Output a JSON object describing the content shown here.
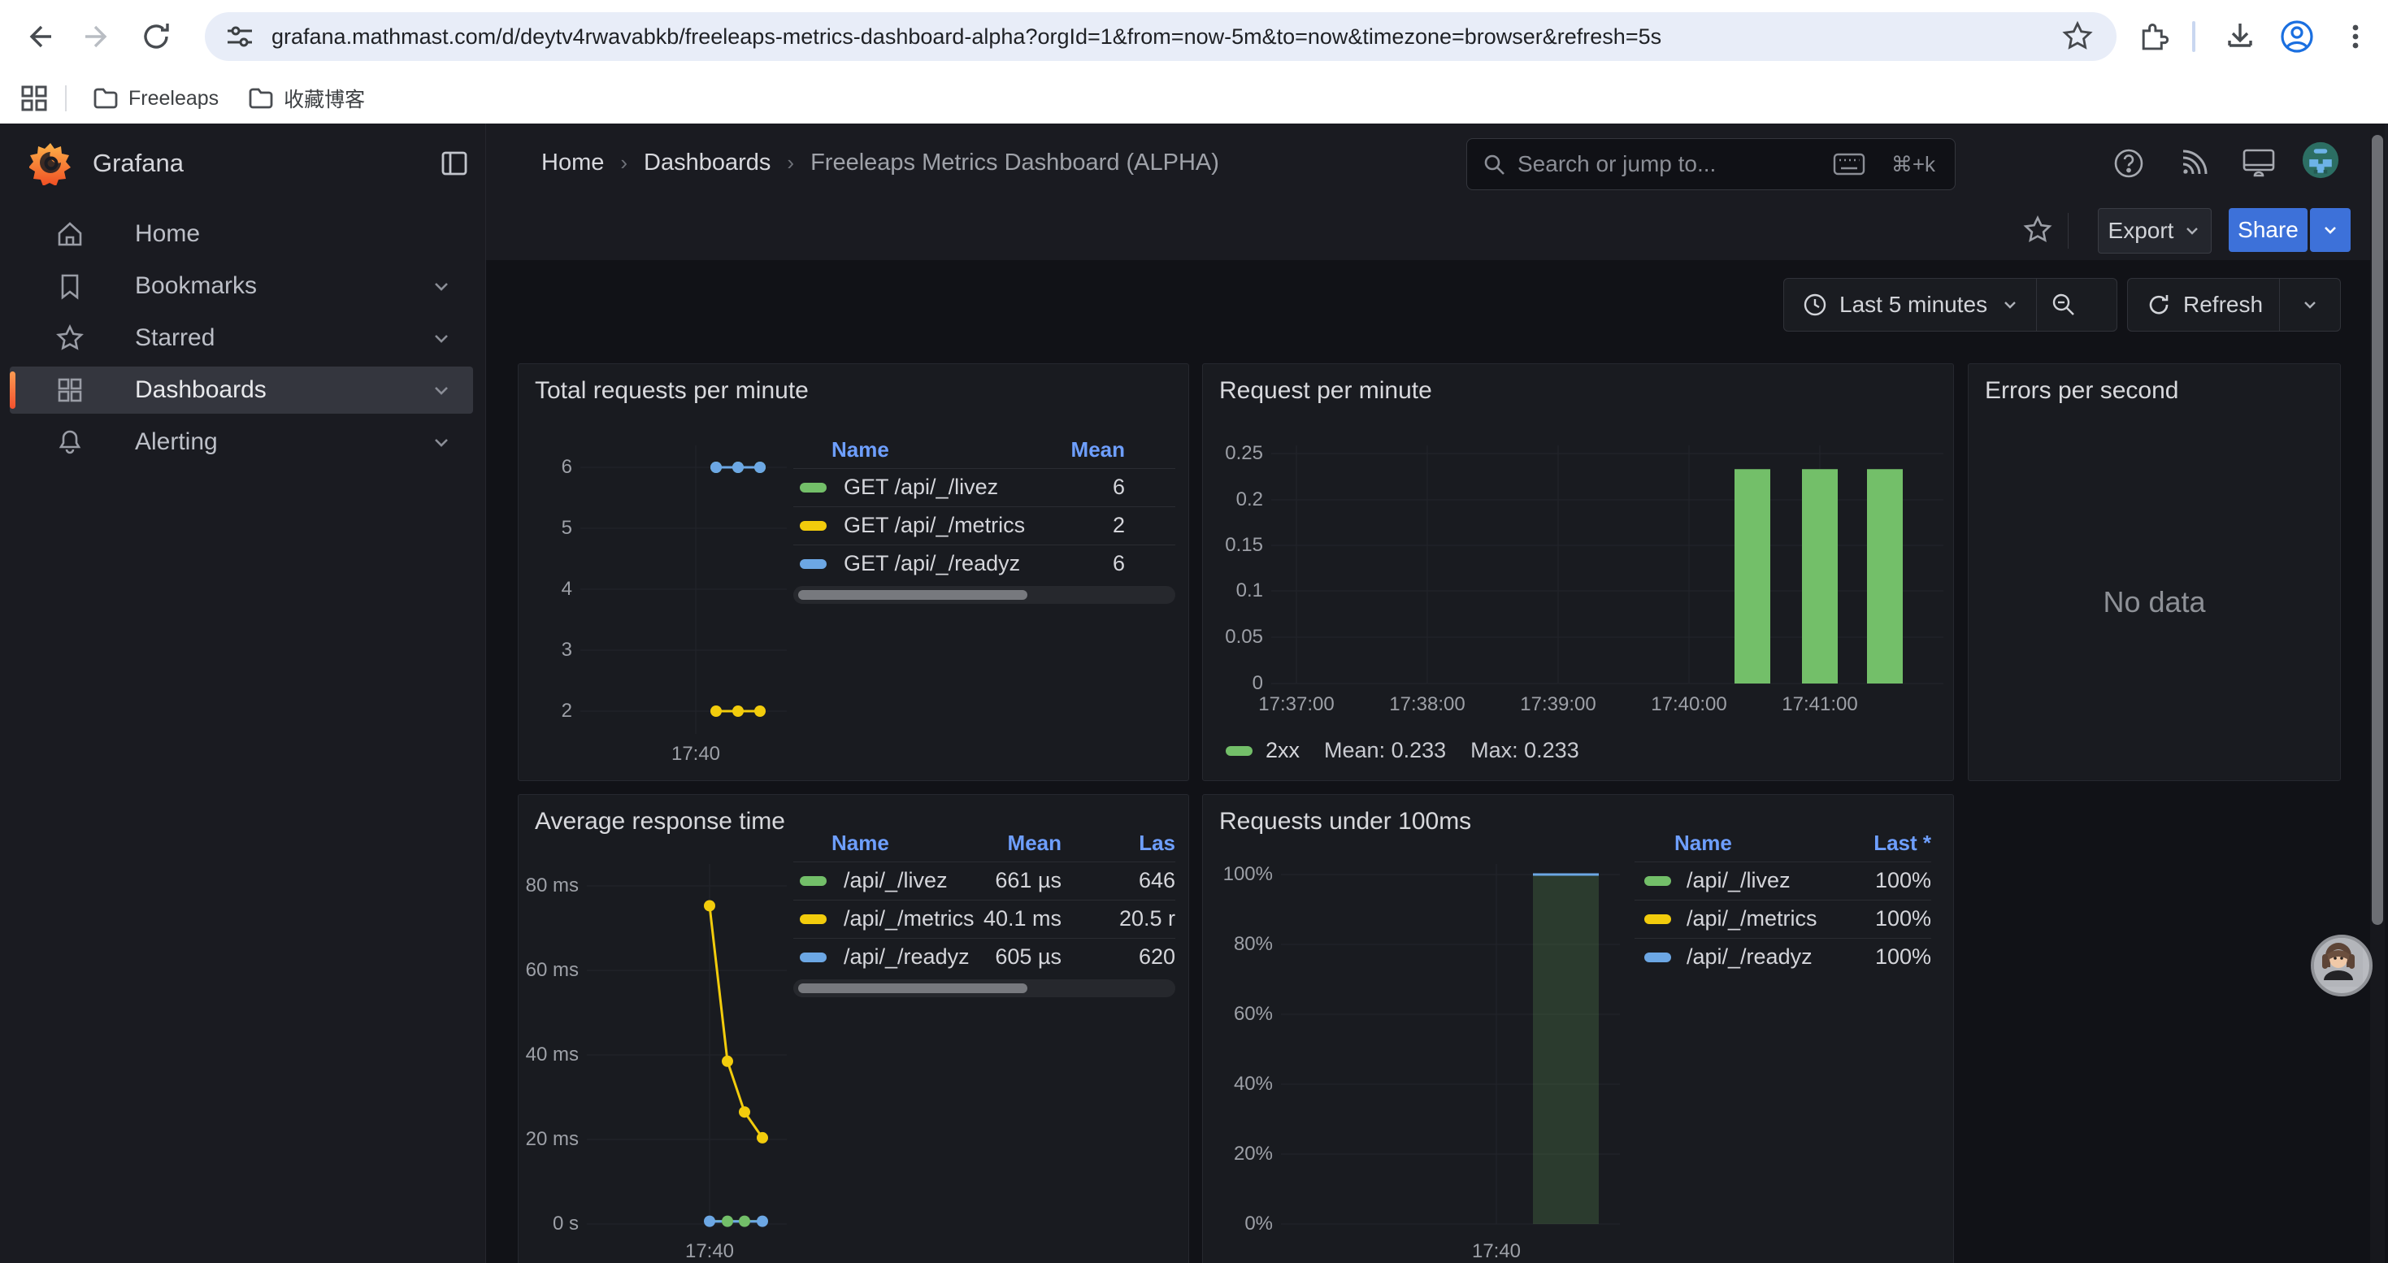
{
  "browser": {
    "url": "grafana.mathmast.com/d/deytv4rwavabkb/freeleaps-metrics-dashboard-alpha?orgId=1&from=now-5m&to=now&timezone=browser&refresh=5s",
    "bookmarks": [
      {
        "label": "Freeleaps"
      },
      {
        "label": "收藏博客"
      }
    ]
  },
  "icons": {
    "breadcrumb_sep": "›",
    "chevron_down": "⌄",
    "help": "?"
  },
  "colors": {
    "accent_blue": "#3d71d9",
    "link_blue": "#6e9fff",
    "series_green": "#73bf69",
    "series_yellow": "#f2cc0c",
    "series_blue": "#6ca7e4",
    "active_orange": "#f3512e"
  },
  "app": {
    "brand": "Grafana",
    "breadcrumb": [
      "Home",
      "Dashboards",
      "Freeleaps Metrics Dashboard (ALPHA)"
    ],
    "search": {
      "placeholder": "Search or jump to...",
      "shortcut": "⌘+k"
    },
    "actions": {
      "export": "Export",
      "share": "Share"
    },
    "time_controls": {
      "range": "Last 5 minutes",
      "refresh": "Refresh"
    },
    "sidebar": [
      {
        "label": "Home",
        "active": false,
        "has_chevron": false
      },
      {
        "label": "Bookmarks",
        "active": false,
        "has_chevron": true
      },
      {
        "label": "Starred",
        "active": false,
        "has_chevron": true
      },
      {
        "label": "Dashboards",
        "active": true,
        "has_chevron": true
      },
      {
        "label": "Alerting",
        "active": false,
        "has_chevron": true
      }
    ]
  },
  "chart_data": [
    {
      "type": "line",
      "title": "Total requests per minute",
      "ylim": [
        2,
        6
      ],
      "y_ticks": [
        "6",
        "5",
        "4",
        "3",
        "2"
      ],
      "x_tick": "17:40",
      "series": [
        {
          "name": "GET /api/_/livez",
          "color": "#73bf69",
          "values": [
            6,
            6,
            6
          ],
          "mean": 6
        },
        {
          "name": "GET /api/_/metrics",
          "color": "#f2cc0c",
          "values": [
            2,
            2,
            2
          ],
          "mean": 2
        },
        {
          "name": "GET /api/_/readyz",
          "color": "#6ca7e4",
          "values": [
            6,
            6,
            6
          ],
          "mean": 6
        }
      ],
      "legend": {
        "columns": [
          "Name",
          "Mean"
        ],
        "rows": [
          {
            "color": "#73bf69",
            "name": "GET /api/_/livez",
            "cells": [
              "6"
            ]
          },
          {
            "color": "#f2cc0c",
            "name": "GET /api/_/metrics",
            "cells": [
              "2"
            ]
          },
          {
            "color": "#6ca7e4",
            "name": "GET /api/_/readyz",
            "cells": [
              "6"
            ]
          }
        ],
        "has_scrollbar": true
      }
    },
    {
      "type": "bar",
      "title": "Request per minute",
      "ylim": [
        0,
        0.25
      ],
      "y_ticks": [
        "0.25",
        "0.2",
        "0.15",
        "0.1",
        "0.05",
        "0"
      ],
      "x_ticks": [
        "17:37:00",
        "17:38:00",
        "17:39:00",
        "17:40:00",
        "17:41:00"
      ],
      "bars": [
        {
          "t": "17:40:30",
          "value": 0.233
        },
        {
          "t": "17:41:00",
          "value": 0.233
        },
        {
          "t": "17:41:30",
          "value": 0.233
        }
      ],
      "series_name": "2xx",
      "series_color": "#73bf69",
      "legend": {
        "name": "2xx",
        "mean_label": "Mean: 0.233",
        "max_label": "Max: 0.233"
      }
    },
    {
      "type": "none",
      "title": "Errors per second",
      "message": "No data"
    },
    {
      "type": "line",
      "title": "Average response time",
      "ylim_ms": [
        0,
        80
      ],
      "y_ticks": [
        "80 ms",
        "60 ms",
        "40 ms",
        "20 ms",
        "0 s"
      ],
      "x_tick": "17:40",
      "series": [
        {
          "name": "/api/_/livez",
          "color": "#73bf69",
          "values_ms": [
            0.65,
            0.65,
            0.65,
            0.65
          ]
        },
        {
          "name": "/api/_/metrics",
          "color": "#f2cc0c",
          "values_ms": [
            75.3,
            38.5,
            26.5,
            20.4
          ]
        },
        {
          "name": "/api/_/readyz",
          "color": "#6ca7e4",
          "values_ms": [
            0.6,
            0.6,
            0.6,
            0.6
          ]
        }
      ],
      "legend": {
        "columns": [
          "Name",
          "Mean",
          "Las"
        ],
        "rows": [
          {
            "color": "#73bf69",
            "name": "/api/_/livez",
            "cells": [
              "661 µs",
              "646"
            ]
          },
          {
            "color": "#f2cc0c",
            "name": "/api/_/metrics",
            "cells": [
              "40.1 ms",
              "20.5 r"
            ]
          },
          {
            "color": "#6ca7e4",
            "name": "/api/_/readyz",
            "cells": [
              "605 µs",
              "620"
            ]
          }
        ],
        "has_scrollbar": true
      }
    },
    {
      "type": "bar",
      "title": "Requests under 100ms",
      "ylim_pct": [
        0,
        100
      ],
      "y_ticks": [
        "100%",
        "80%",
        "60%",
        "40%",
        "20%",
        "0%"
      ],
      "x_tick": "17:40",
      "bars": [
        {
          "t": "17:40",
          "value_pct": 100
        }
      ],
      "legend": {
        "columns": [
          "Name",
          "Last *"
        ],
        "rows": [
          {
            "color": "#73bf69",
            "name": "/api/_/livez",
            "cells": [
              "100%"
            ]
          },
          {
            "color": "#f2cc0c",
            "name": "/api/_/metrics",
            "cells": [
              "100%"
            ]
          },
          {
            "color": "#6ca7e4",
            "name": "/api/_/readyz",
            "cells": [
              "100%"
            ]
          }
        ],
        "has_scrollbar": false
      }
    }
  ]
}
